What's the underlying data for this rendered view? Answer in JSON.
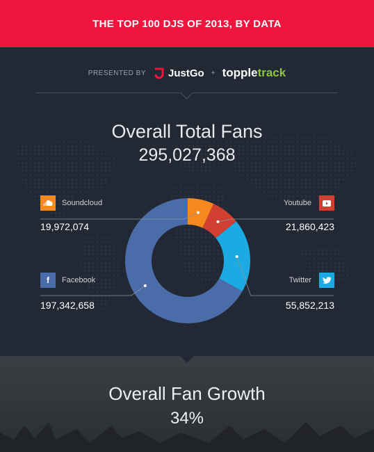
{
  "banner": {
    "title": "THE TOP 100 DJS OF 2013, BY DATA"
  },
  "presented": {
    "prefix": "PRESENTED BY",
    "sponsor1": "JustGo",
    "plus": "+",
    "sponsor2_a": "topple",
    "sponsor2_b": "track"
  },
  "section1": {
    "title": "Overall Total Fans",
    "total": "295,027,368"
  },
  "section2": {
    "title": "Overall Fan Growth",
    "value": "34%"
  },
  "colors": {
    "banner": "#f0153f",
    "background": "#232835",
    "soundcloud": "#f7891e",
    "youtube": "#d13f30",
    "twitter": "#1caae2",
    "facebook": "#4a6ca9"
  },
  "chart_data": {
    "type": "pie",
    "title": "Overall Total Fans",
    "total": 295027368,
    "series": [
      {
        "name": "Soundcloud",
        "value": 19972074,
        "label": "19,972,074",
        "color": "#f7891e",
        "icon": "soundcloud-icon"
      },
      {
        "name": "Youtube",
        "value": 21860423,
        "label": "21,860,423",
        "color": "#d13f30",
        "icon": "youtube-icon"
      },
      {
        "name": "Twitter",
        "value": 55852213,
        "label": "55,852,213",
        "color": "#1caae2",
        "icon": "twitter-icon"
      },
      {
        "name": "Facebook",
        "value": 197342658,
        "label": "197,342,658",
        "color": "#4a6ca9",
        "icon": "facebook-icon"
      }
    ]
  }
}
